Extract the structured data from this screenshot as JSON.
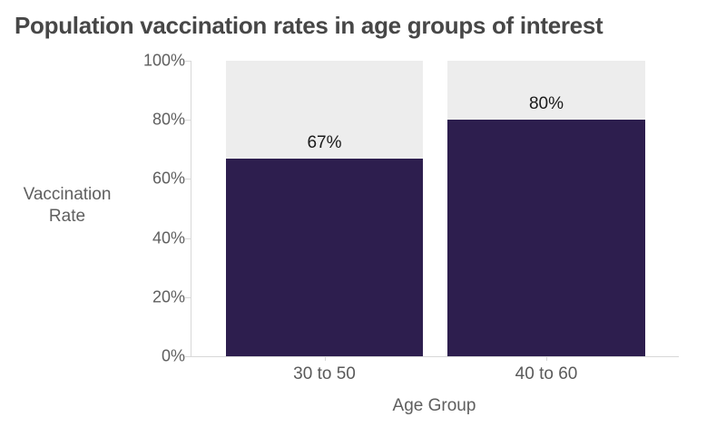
{
  "title": "Population vaccination rates in age groups of interest",
  "chart_data": {
    "type": "bar",
    "title": "Population vaccination rates in age groups of interest",
    "xlabel": "Age Group",
    "ylabel": "Vaccination Rate",
    "categories": [
      "30 to 50",
      "40 to 60"
    ],
    "values": [
      67,
      80
    ],
    "value_labels": [
      "67%",
      "80%"
    ],
    "ylim": [
      0,
      100
    ],
    "yticks": [
      "100%",
      "80%",
      "60%",
      "40%",
      "20%",
      "0%"
    ],
    "grid": false,
    "legend": "none",
    "layout": "bars on light-gray 100% reference tracks, value labels above bar tops",
    "colors": {
      "bar": "#2d1e4e",
      "track": "#ededed",
      "axis_line": "#d8d8d8",
      "tick_text": "#5f5f5f",
      "title_text": "#474747",
      "value_label_text": "#1a1a1a",
      "background": "#ffffff"
    }
  }
}
